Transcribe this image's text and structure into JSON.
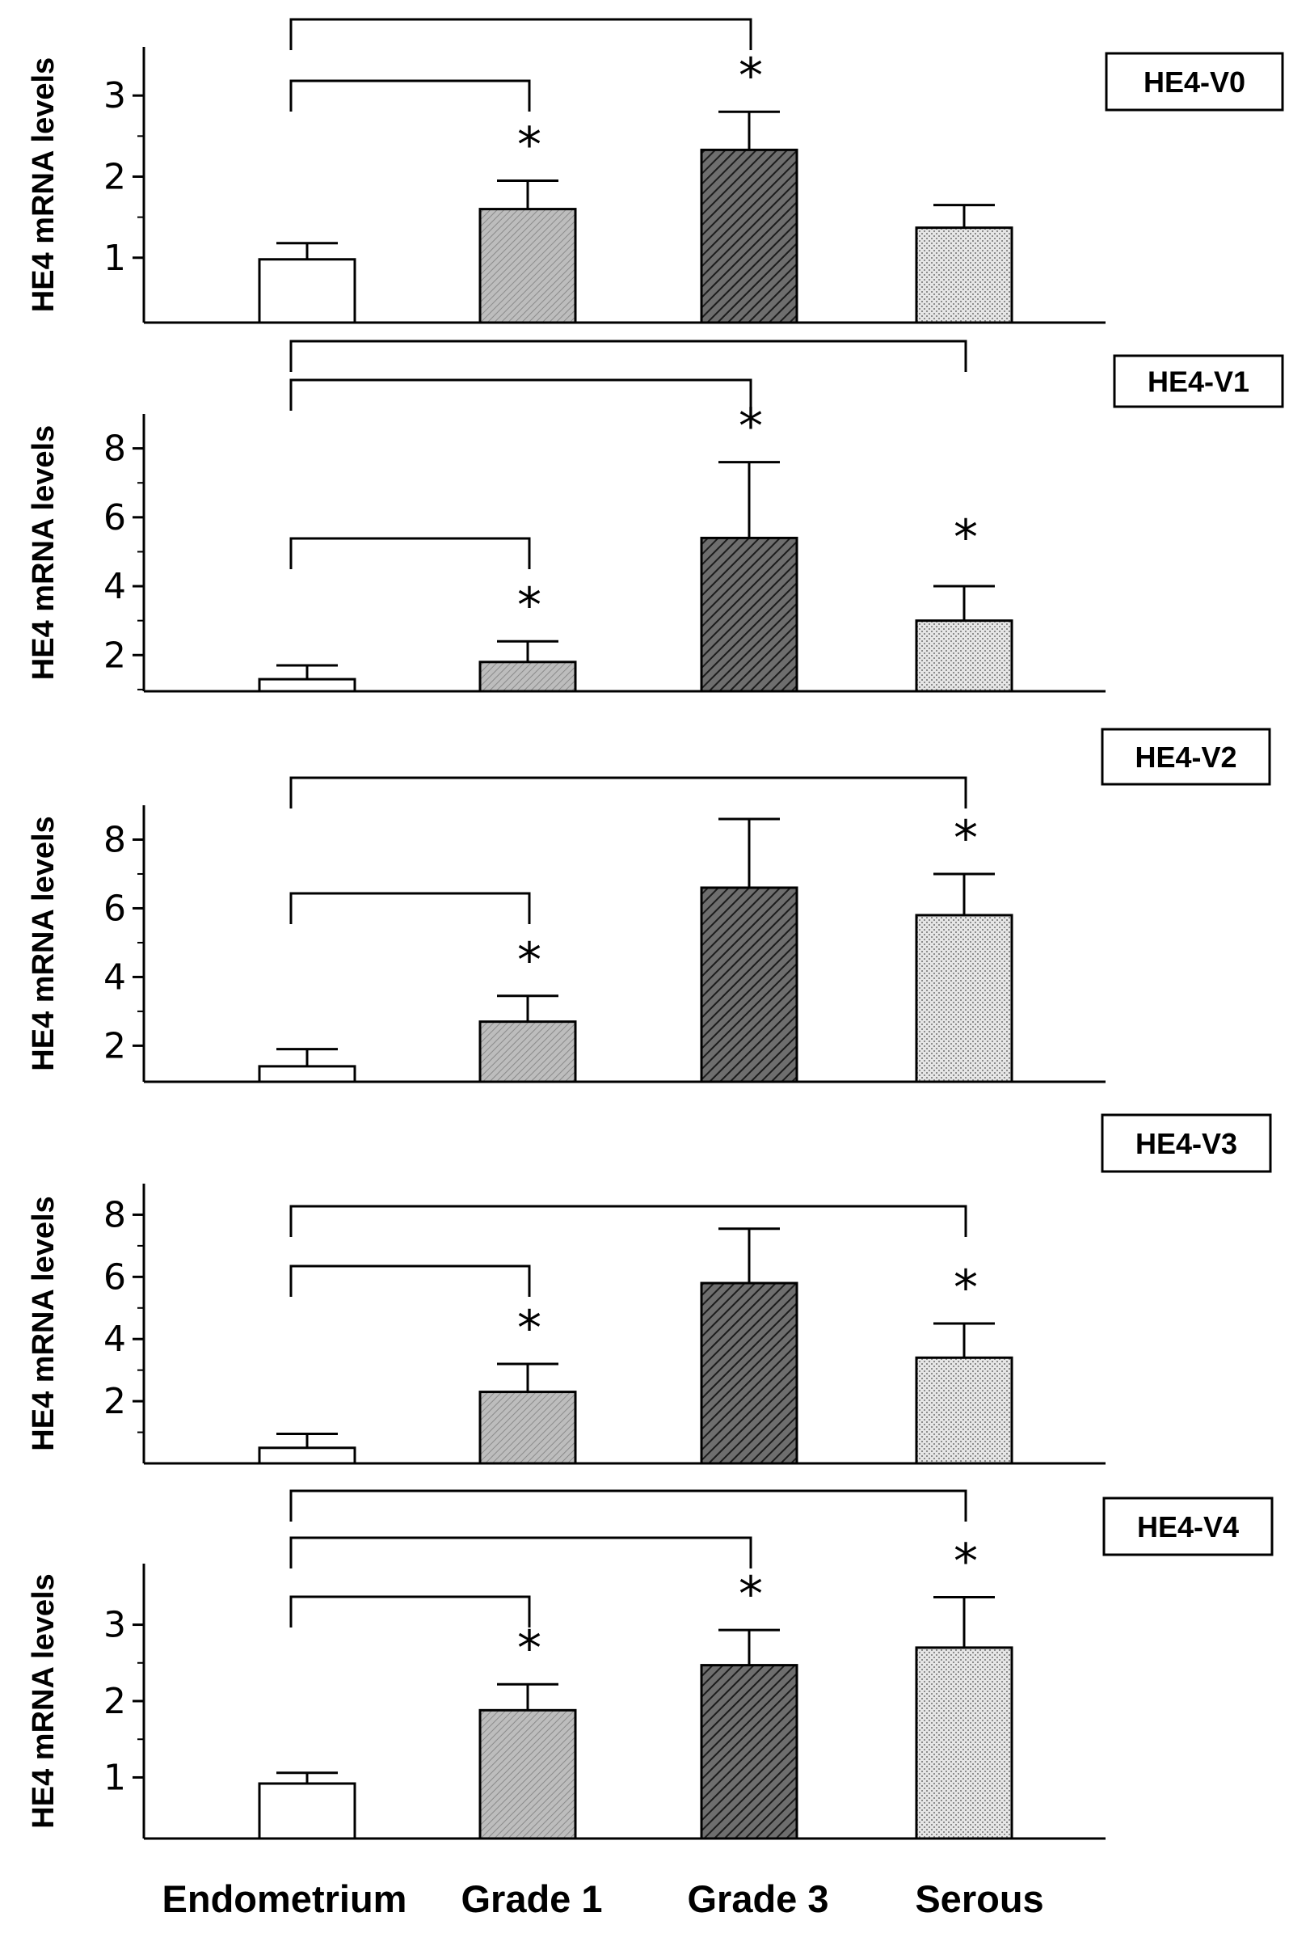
{
  "chart_data": [
    {
      "type": "bar",
      "panel_label": "HE4-V0",
      "ylabel": "HE4 mRNA levels",
      "categories": [
        "Endometrium",
        "Grade 1",
        "Grade 3",
        "Serous"
      ],
      "values": [
        0.98,
        1.6,
        2.33,
        1.37
      ],
      "errors": [
        0.2,
        0.35,
        0.47,
        0.28
      ],
      "ylim": [
        0.2,
        3.6
      ],
      "major_ticks": [
        1,
        2,
        3
      ],
      "minor_ticks": [
        1.5,
        2.5
      ],
      "significance": [
        {
          "from": 0,
          "to": 2,
          "label": "*"
        },
        {
          "from": 0,
          "to": 1,
          "label": "*"
        }
      ]
    },
    {
      "type": "bar",
      "panel_label": "HE4-V1",
      "ylabel": "HE4 mRNA levels",
      "categories": [
        "Endometrium",
        "Grade 1",
        "Grade 3",
        "Serous"
      ],
      "values": [
        1.3,
        1.8,
        5.4,
        3.0
      ],
      "errors": [
        0.4,
        0.6,
        2.2,
        1.0
      ],
      "ylim": [
        0.95,
        9.0
      ],
      "major_ticks": [
        2,
        4,
        6,
        8
      ],
      "minor_ticks": [
        1,
        3,
        5,
        7
      ],
      "significance": [
        {
          "from": 0,
          "to": 3,
          "label": ""
        },
        {
          "from": 0,
          "to": 2,
          "label": "*"
        },
        {
          "from": 0,
          "to": 1,
          "label": "*"
        },
        {
          "from": 3,
          "to": 3,
          "label": "*"
        }
      ]
    },
    {
      "type": "bar",
      "panel_label": "HE4-V2",
      "ylabel": "HE4 mRNA levels",
      "categories": [
        "Endometrium",
        "Grade 1",
        "Grade 3",
        "Serous"
      ],
      "values": [
        1.4,
        2.7,
        6.6,
        5.8
      ],
      "errors": [
        0.5,
        0.75,
        2.0,
        1.2
      ],
      "ylim": [
        0.95,
        9.0
      ],
      "major_ticks": [
        2,
        4,
        6,
        8
      ],
      "minor_ticks": [
        3,
        5,
        7
      ],
      "significance": [
        {
          "from": 0,
          "to": 3,
          "label": "*"
        },
        {
          "from": 0,
          "to": 1,
          "label": "*"
        }
      ]
    },
    {
      "type": "bar",
      "panel_label": "HE4-V3",
      "ylabel": "HE4 mRNA levels",
      "categories": [
        "Endometrium",
        "Grade 1",
        "Grade 3",
        "Serous"
      ],
      "values": [
        0.5,
        2.3,
        5.8,
        3.4
      ],
      "errors": [
        0.45,
        0.9,
        1.75,
        1.1
      ],
      "ylim": [
        0.0,
        9.0
      ],
      "major_ticks": [
        2,
        4,
        6,
        8
      ],
      "minor_ticks": [
        1,
        3,
        5,
        7
      ],
      "significance": [
        {
          "from": 0,
          "to": 3,
          "label": "*"
        },
        {
          "from": 0,
          "to": 1,
          "label": "*"
        }
      ]
    },
    {
      "type": "bar",
      "panel_label": "HE4-V4",
      "ylabel": "HE4 mRNA levels",
      "categories": [
        "Endometrium",
        "Grade 1",
        "Grade 3",
        "Serous"
      ],
      "values": [
        0.92,
        1.88,
        2.47,
        2.7
      ],
      "errors": [
        0.14,
        0.34,
        0.46,
        0.66
      ],
      "ylim": [
        0.2,
        3.8
      ],
      "major_ticks": [
        1,
        2,
        3
      ],
      "minor_ticks": [
        1.5,
        2.5
      ],
      "significance": [
        {
          "from": 0,
          "to": 3,
          "label": "*"
        },
        {
          "from": 0,
          "to": 2,
          "label": "*"
        },
        {
          "from": 0,
          "to": 1,
          "label": "*"
        }
      ]
    }
  ],
  "x_axis_categories": [
    "Endometrium",
    "Grade 1",
    "Grade 3",
    "Serous"
  ],
  "bar_styles": {
    "Endometrium": {
      "fill": "#ffffff",
      "pattern": "none"
    },
    "Grade 1": {
      "fill": "#b4b4b4",
      "pattern": "fine"
    },
    "Grade 3": {
      "fill": "#4a4a4a",
      "pattern": "diagonal"
    },
    "Serous": {
      "fill": "#d2d2d2",
      "pattern": "dots"
    }
  }
}
